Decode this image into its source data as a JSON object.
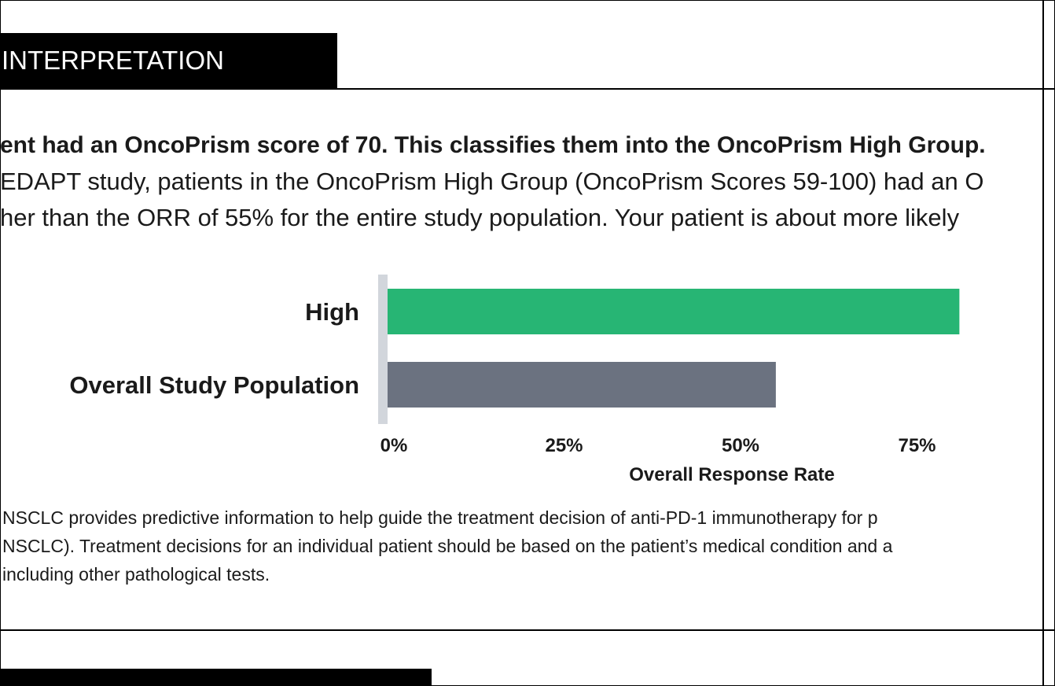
{
  "section": {
    "title": "INTERPRETATION",
    "next_title": ""
  },
  "interpretation": {
    "line1": "ent had an OncoPrism score of 70. This classifies them into the OncoPrism High Group.",
    "line2": "EDAPT study, patients in the OncoPrism High Group (OncoPrism Scores 59-100) had an O",
    "line3": "her than the ORR of 55% for the entire study population. Your patient is about more likely"
  },
  "chart_data": {
    "type": "bar",
    "orientation": "horizontal",
    "categories": [
      "High",
      "Overall Study Population"
    ],
    "values": [
      81,
      55
    ],
    "colors": [
      "#27b574",
      "#6b7280"
    ],
    "xlabel": "Overall Response Rate",
    "xticks": [
      "0%",
      "25%",
      "50%",
      "75%"
    ],
    "xlim": [
      0,
      100
    ],
    "grid": false
  },
  "footnote": {
    "line1": "NSCLC provides predictive information to help guide the treatment decision of anti-PD-1 immunotherapy for p",
    "line2": "NSCLC). Treatment decisions for an individual patient should be based on the patient’s medical condition and a",
    "line3": "including other pathological tests."
  }
}
